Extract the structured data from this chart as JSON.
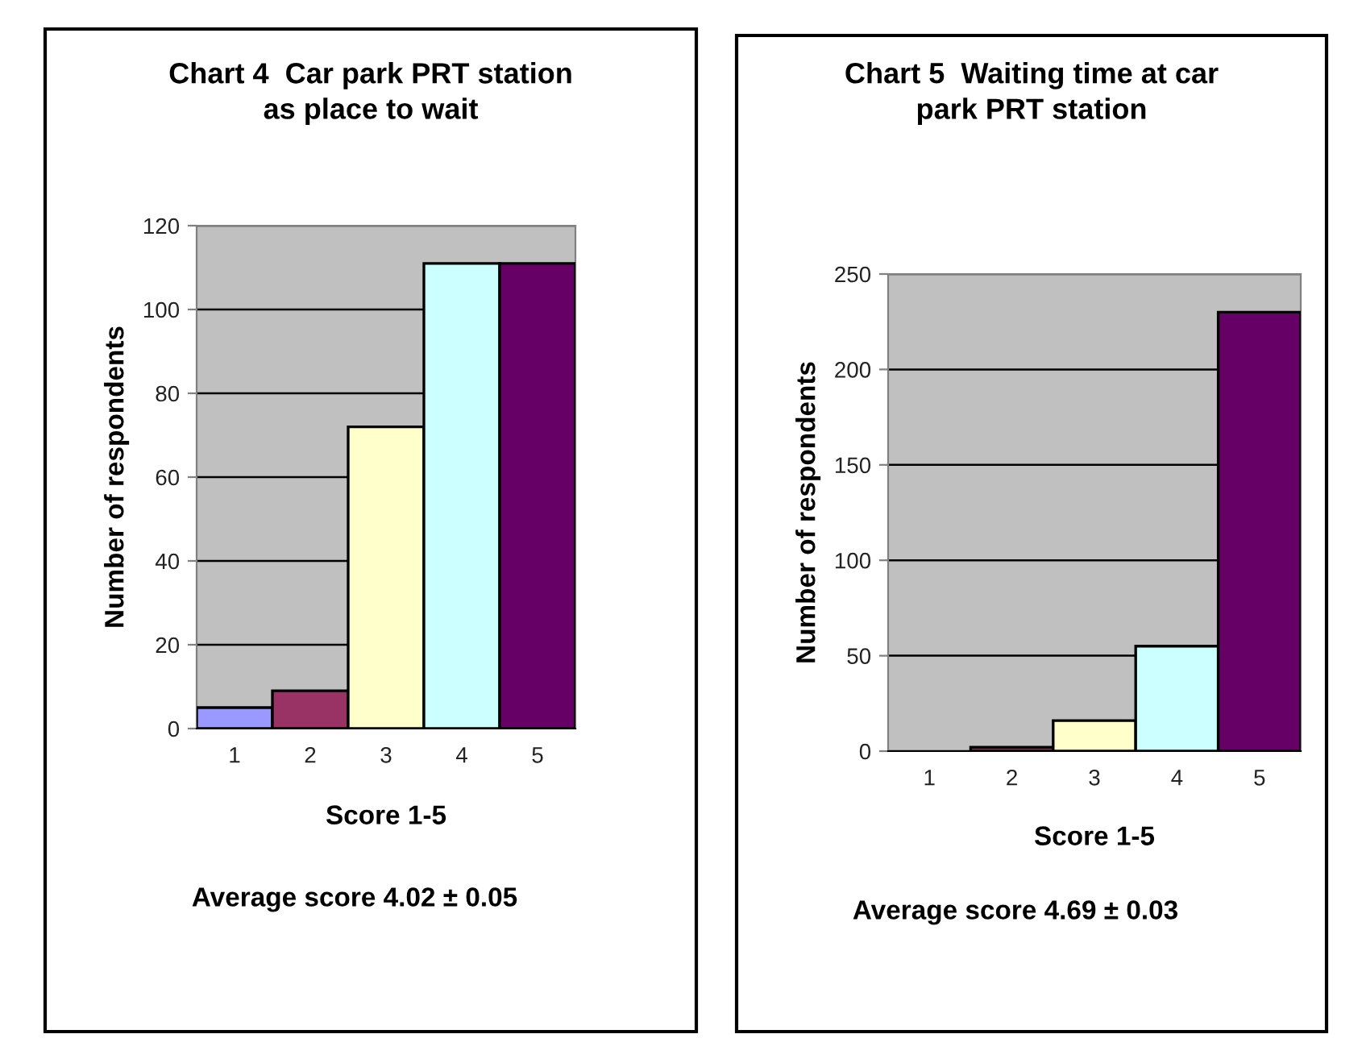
{
  "chart_data": [
    {
      "type": "bar",
      "title": "Chart 4  Car park PRT station\nas place to wait",
      "xlabel": "Score 1-5",
      "ylabel": "Number of respondents",
      "categories": [
        "1",
        "2",
        "3",
        "4",
        "5"
      ],
      "values": [
        5,
        9,
        72,
        111,
        111
      ],
      "colors": [
        "#9999ff",
        "#993366",
        "#ffffcc",
        "#ccffff",
        "#660066"
      ],
      "ylim": [
        0,
        120
      ],
      "yticks": [
        0,
        20,
        40,
        60,
        80,
        100,
        120
      ],
      "grid": "y",
      "annotations": [
        "Average score 4.02 ± 0.05"
      ]
    },
    {
      "type": "bar",
      "title": "Chart 5  Waiting time at car\npark PRT station",
      "xlabel": "Score 1-5",
      "ylabel": "Number of respondents",
      "categories": [
        "1",
        "2",
        "3",
        "4",
        "5"
      ],
      "values": [
        0,
        2,
        16,
        55,
        230
      ],
      "colors": [
        "#9999ff",
        "#993366",
        "#ffffcc",
        "#ccffff",
        "#660066"
      ],
      "ylim": [
        0,
        250
      ],
      "yticks": [
        0,
        50,
        100,
        150,
        200,
        250
      ],
      "grid": "y",
      "annotations": [
        "Average score 4.69 ± 0.03"
      ]
    }
  ]
}
